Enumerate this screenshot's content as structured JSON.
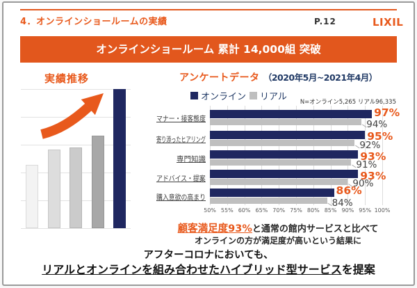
{
  "page": {
    "title": "4．オンラインショールームの実績",
    "page_number": "P.12",
    "logo": "LIXIL"
  },
  "banner": {
    "text": "オンラインショールーム 累計 14,000組 突破"
  },
  "colors": {
    "orange": "#E2571D",
    "navy": "#1F2760",
    "gray_bar": "#BFBFBF"
  },
  "survey": {
    "title": "アンケートデータ",
    "period": "（2020年5月~2021年4月）",
    "legend": [
      {
        "label": "オンライン",
        "color": "#1F2760"
      },
      {
        "label": "リアル",
        "color": "#BFBFBF"
      }
    ],
    "sample_note": "N=オンライン5,265 リアル96,335"
  },
  "chart_data": [
    {
      "type": "bar",
      "title": "実績推移",
      "note": "no axis values shown; relative heights only",
      "values_relative": [
        0.455,
        0.565,
        0.58,
        0.665,
        1.0
      ],
      "colors": [
        "#f3f3f3",
        "#dddddd",
        "#cbcbcb",
        "#a8a8a8",
        "#1F2760"
      ]
    },
    {
      "type": "bar",
      "orientation": "horizontal",
      "title": "アンケートデータ（2020年5月~2021年4月）",
      "categories": [
        "マナー・接客態度",
        "寄り添ったヒアリング",
        "専門知識",
        "アドバイス・提案",
        "購入意欲の高まり"
      ],
      "series": [
        {
          "name": "オンライン",
          "values": [
            97,
            95,
            93,
            93,
            86
          ],
          "color": "#1F2760"
        },
        {
          "name": "リアル",
          "values": [
            94,
            92,
            91,
            90,
            84
          ],
          "color": "#BFBFBF"
        }
      ],
      "xlim": [
        50,
        100
      ],
      "tick_step": 5,
      "tick_labels": [
        "50%",
        "55%",
        "60%",
        "65%",
        "70%",
        "75%",
        "80%",
        "85%",
        "90%",
        "95%",
        "100%"
      ],
      "legend_position": "top"
    }
  ],
  "conclusion": {
    "highlight": "顧客満足度93%",
    "rest": "と通常の館内サービスと比べて",
    "line2": "オンラインの方が満足度が高いという結果に"
  },
  "footer": {
    "line1": "アフターコロナにおいても、",
    "line2_underlined": "リアルとオンラインを組み合わせたハイブリッド型サービス",
    "line2_rest": "を提案"
  }
}
